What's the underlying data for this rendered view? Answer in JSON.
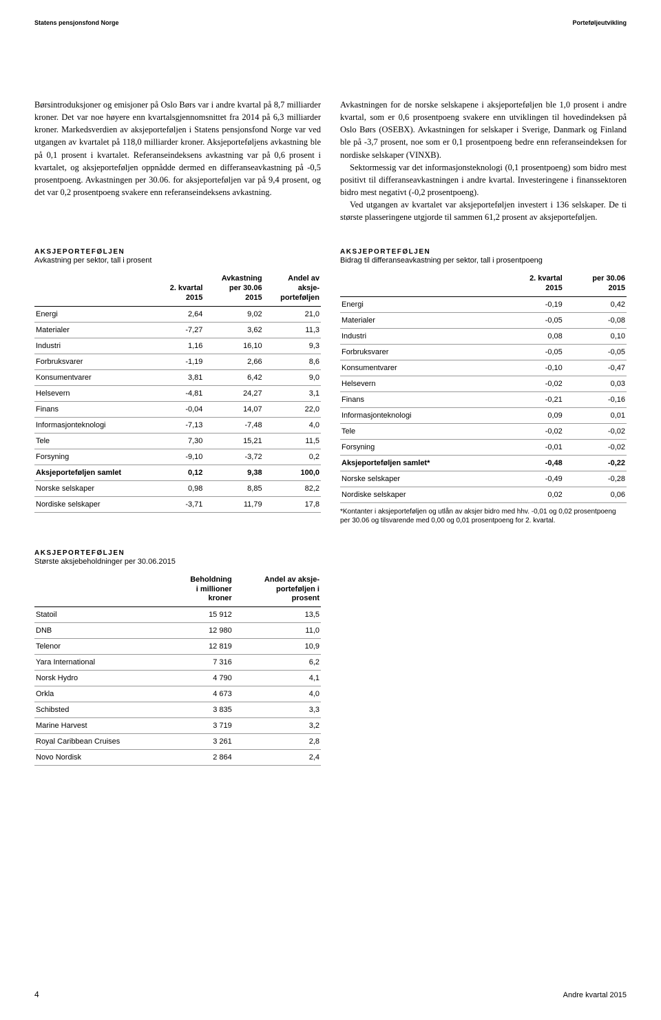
{
  "header": {
    "left": "Statens pensjonsfond Norge",
    "right": "Porteføljeutvikling"
  },
  "body": {
    "left": "Børsintroduksjoner og emisjoner på Oslo Børs var i andre kvartal på 8,7 milliarder kroner. Det var noe høyere enn kvartalsgjennomsnittet fra 2014 på 6,3 milliarder kroner. Markedsverdien av aksjeporteføljen i Statens pensjonsfond Norge var ved utgangen av kvartalet på 118,0 milliarder kroner. Aksjeporteføljens avkastning ble på 0,1 prosent i kvartalet. Referanseindeksens avkastning var på 0,6 prosent i kvartalet, og aksjeporteføljen oppnådde dermed en differanseavkastning på -0,5 prosentpoeng. Avkastningen per 30.06. for aksjeporteføljen var på 9,4 prosent, og det var 0,2 prosentpoeng svakere enn referanseindeksens avkastning.",
    "right": "Avkastningen for de norske selskapene i aksjeporteføljen ble 1,0 prosent i andre kvartal, som er 0,6 prosentpoeng svakere enn utviklingen til hovedindeksen på Oslo Børs (OSEBX). Avkastningen for selskaper i Sverige, Danmark og Finland ble på -3,7 prosent, noe som er 0,1 prosentpoeng bedre enn referanseindeksen for nordiske selskaper (VINXB).\nSektormessig var det informasjonsteknologi (0,1 prosentpoeng) som bidro mest positivt til differanseavkastningen i andre kvartal. Investeringene i finanssektoren bidro mest negativt (-0,2 prosentpoeng).\nVed utgangen av kvartalet var aksjeporteføljen investert i 136 selskaper. De ti største plasseringene utgjorde til sammen 61,2 prosent av aksjeporteføljen."
  },
  "table1": {
    "title": "AKSJEPORTEFØLJEN",
    "subtitle": "Avkastning per sektor, tall i prosent",
    "headers": [
      "",
      "2. kvartal\n2015",
      "Avkastning\nper 30.06\n2015",
      "Andel av\naksje-\nporteføljen"
    ],
    "rows": [
      [
        "Energi",
        "2,64",
        "9,02",
        "21,0"
      ],
      [
        "Materialer",
        "-7,27",
        "3,62",
        "11,3"
      ],
      [
        "Industri",
        "1,16",
        "16,10",
        "9,3"
      ],
      [
        "Forbruksvarer",
        "-1,19",
        "2,66",
        "8,6"
      ],
      [
        "Konsumentvarer",
        "3,81",
        "6,42",
        "9,0"
      ],
      [
        "Helsevern",
        "-4,81",
        "24,27",
        "3,1"
      ],
      [
        "Finans",
        "-0,04",
        "14,07",
        "22,0"
      ],
      [
        "Informasjonteknologi",
        "-7,13",
        "-7,48",
        "4,0"
      ],
      [
        "Tele",
        "7,30",
        "15,21",
        "11,5"
      ],
      [
        "Forsyning",
        "-9,10",
        "-3,72",
        "0,2"
      ],
      [
        "Aksjeporteføljen samlet",
        "0,12",
        "9,38",
        "100,0"
      ],
      [
        "Norske selskaper",
        "0,98",
        "8,85",
        "82,2"
      ],
      [
        "Nordiske selskaper",
        "-3,71",
        "11,79",
        "17,8"
      ]
    ],
    "boldRow": 10
  },
  "table2": {
    "title": "AKSJEPORTEFØLJEN",
    "subtitle": "Bidrag til differanseavkastning per sektor, tall i prosentpoeng",
    "headers": [
      "",
      "2. kvartal\n2015",
      "per 30.06\n2015"
    ],
    "rows": [
      [
        "Energi",
        "-0,19",
        "0,42"
      ],
      [
        "Materialer",
        "-0,05",
        "-0,08"
      ],
      [
        "Industri",
        "0,08",
        "0,10"
      ],
      [
        "Forbruksvarer",
        "-0,05",
        "-0,05"
      ],
      [
        "Konsumentvarer",
        "-0,10",
        "-0,47"
      ],
      [
        "Helsevern",
        "-0,02",
        "0,03"
      ],
      [
        "Finans",
        "-0,21",
        "-0,16"
      ],
      [
        "Informasjonteknologi",
        "0,09",
        "0,01"
      ],
      [
        "Tele",
        "-0,02",
        "-0,02"
      ],
      [
        "Forsyning",
        "-0,01",
        "-0,02"
      ],
      [
        "Aksjeporteføljen samlet*",
        "-0,48",
        "-0,22"
      ],
      [
        "Norske selskaper",
        "-0,49",
        "-0,28"
      ],
      [
        "Nordiske selskaper",
        "0,02",
        "0,06"
      ]
    ],
    "boldRow": 10,
    "footnote": "*Kontanter i aksjeporteføljen og utlån av aksjer bidro med hhv. -0,01 og 0,02 prosentpoeng per 30.06 og tilsvarende med 0,00 og 0,01 prosentpoeng for 2. kvartal."
  },
  "table3": {
    "title": "AKSJEPORTEFØLJEN",
    "subtitle": "Største aksjebeholdninger per 30.06.2015",
    "headers": [
      "",
      "Beholdning\ni millioner\nkroner",
      "Andel av aksje-\nporteføljen i\nprosent"
    ],
    "rows": [
      [
        "Statoil",
        "15 912",
        "13,5"
      ],
      [
        "DNB",
        "12 980",
        "11,0"
      ],
      [
        "Telenor",
        "12 819",
        "10,9"
      ],
      [
        "Yara International",
        "7 316",
        "6,2"
      ],
      [
        "Norsk Hydro",
        "4 790",
        "4,1"
      ],
      [
        "Orkla",
        "4 673",
        "4,0"
      ],
      [
        "Schibsted",
        "3 835",
        "3,3"
      ],
      [
        "Marine Harvest",
        "3 719",
        "3,2"
      ],
      [
        "Royal Caribbean Cruises",
        "3 261",
        "2,8"
      ],
      [
        "Novo Nordisk",
        "2 864",
        "2,4"
      ]
    ]
  },
  "footer": {
    "pageNum": "4",
    "right": "Andre kvartal 2015"
  }
}
